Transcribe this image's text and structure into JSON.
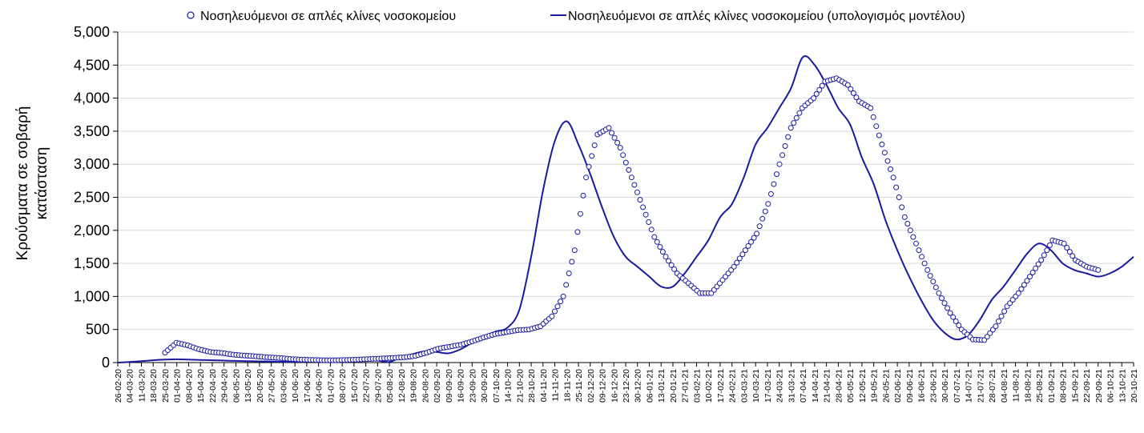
{
  "chart_data": {
    "type": "line",
    "ylabel": [
      "Κρούσματα σε σοβαρή",
      "κατάσταση"
    ],
    "ylim": [
      0,
      5000
    ],
    "yticks": [
      "0",
      "500",
      "1,000",
      "1,500",
      "2,000",
      "2,500",
      "3,000",
      "3,500",
      "4,000",
      "4,500",
      "5,000"
    ],
    "grid": "horizontal",
    "legend_position": "top",
    "x_categories": [
      "26-02-20",
      "04-03-20",
      "11-03-20",
      "18-03-20",
      "25-03-20",
      "01-04-20",
      "08-04-20",
      "15-04-20",
      "22-04-20",
      "29-04-20",
      "06-05-20",
      "13-05-20",
      "20-05-20",
      "27-05-20",
      "03-06-20",
      "10-06-20",
      "17-06-20",
      "24-06-20",
      "01-07-20",
      "08-07-20",
      "15-07-20",
      "22-07-20",
      "29-07-20",
      "05-08-20",
      "12-08-20",
      "19-08-20",
      "26-08-20",
      "02-09-20",
      "09-09-20",
      "16-09-20",
      "23-09-20",
      "30-09-20",
      "07-10-20",
      "14-10-20",
      "21-10-20",
      "28-10-20",
      "04-11-20",
      "11-11-20",
      "18-11-20",
      "25-11-20",
      "02-12-20",
      "09-12-20",
      "16-12-20",
      "23-12-20",
      "30-12-20",
      "06-01-21",
      "13-01-21",
      "20-01-21",
      "27-01-21",
      "03-02-21",
      "10-02-21",
      "17-02-21",
      "24-02-21",
      "03-03-21",
      "10-03-21",
      "17-03-21",
      "24-03-21",
      "31-03-21",
      "07-04-21",
      "14-04-21",
      "21-04-21",
      "28-04-21",
      "05-05-21",
      "12-05-21",
      "19-05-21",
      "26-05-21",
      "02-06-21",
      "09-06-21",
      "16-06-21",
      "23-06-21",
      "30-06-21",
      "07-07-21",
      "14-07-21",
      "21-07-21",
      "28-07-21",
      "04-08-21",
      "11-08-21",
      "18-08-21",
      "25-08-21",
      "01-09-21",
      "08-09-21",
      "15-09-21",
      "22-09-21",
      "29-09-21",
      "06-10-21",
      "13-10-21",
      "20-10-21"
    ],
    "series": [
      {
        "name": "Νοσηλευόμενοι σε απλές κλίνες νοσοκομείου",
        "style": "markers",
        "color": "#1a1aa0",
        "x_range": [
          4,
          83
        ],
        "values": [
          150,
          300,
          260,
          200,
          160,
          145,
          120,
          105,
          95,
          80,
          70,
          55,
          45,
          40,
          35,
          35,
          40,
          45,
          55,
          60,
          70,
          80,
          100,
          150,
          210,
          240,
          270,
          320,
          380,
          430,
          460,
          490,
          500,
          550,
          700,
          1000,
          1700,
          2800,
          3450,
          3550,
          3250,
          2800,
          2350,
          1900,
          1600,
          1350,
          1200,
          1050,
          1050,
          1250,
          1450,
          1700,
          1950,
          2400,
          3000,
          3550,
          3850,
          4000,
          4250,
          4300,
          4200,
          3950,
          3850,
          3300,
          2800,
          2200,
          1800,
          1400,
          1050,
          750,
          500,
          350,
          340,
          550,
          850,
          1050,
          1300,
          1550,
          1850,
          1800,
          1550,
          1450,
          1400
        ]
      },
      {
        "name": "Νοσηλευόμενοι σε απλές κλίνες νοσοκομείου (υπολογισμός μοντέλου)",
        "style": "line",
        "color": "#1a1aa0",
        "x_range": [
          0,
          86
        ],
        "values": [
          0,
          10,
          20,
          35,
          45,
          50,
          45,
          40,
          35,
          30,
          25,
          20,
          18,
          15,
          12,
          12,
          15,
          20,
          22,
          25,
          30,
          35,
          30,
          10,
          80,
          130,
          170,
          160,
          140,
          200,
          300,
          400,
          470,
          530,
          800,
          1600,
          2600,
          3350,
          3650,
          3300,
          2850,
          2350,
          1900,
          1600,
          1450,
          1300,
          1150,
          1150,
          1350,
          1600,
          1850,
          2200,
          2400,
          2800,
          3300,
          3550,
          3850,
          4150,
          4620,
          4500,
          4200,
          3850,
          3600,
          3100,
          2700,
          2150,
          1700,
          1300,
          950,
          650,
          450,
          350,
          420,
          650,
          950,
          1150,
          1400,
          1650,
          1800,
          1700,
          1500,
          1400,
          1350,
          1300,
          1350,
          1450,
          1600
        ]
      }
    ]
  }
}
